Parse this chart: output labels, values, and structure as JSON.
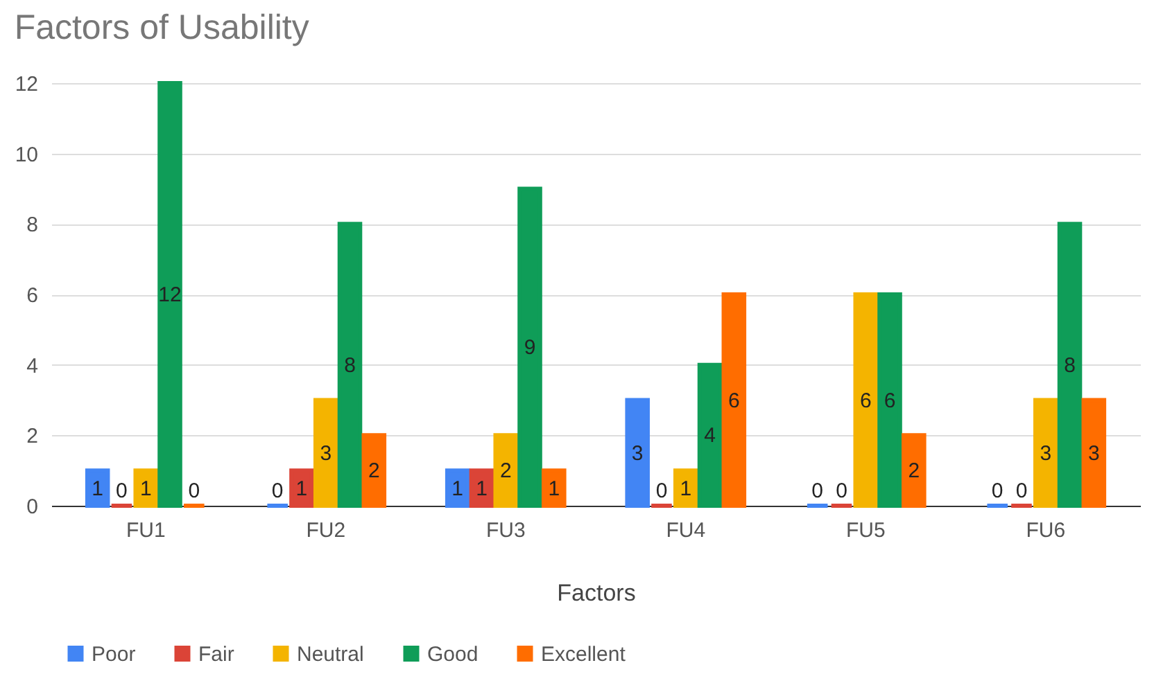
{
  "chart_data": {
    "type": "bar",
    "title": "Factors of Usability",
    "xlabel": "Factors",
    "categories": [
      "FU1",
      "FU2",
      "FU3",
      "FU4",
      "FU5",
      "FU6"
    ],
    "series": [
      {
        "name": "Poor",
        "color": "#4285f4",
        "values": [
          1,
          0,
          1,
          3,
          0,
          0
        ]
      },
      {
        "name": "Fair",
        "color": "#db4437",
        "values": [
          0,
          1,
          1,
          0,
          0,
          0
        ]
      },
      {
        "name": "Neutral",
        "color": "#f4b400",
        "values": [
          1,
          3,
          2,
          1,
          6,
          3
        ]
      },
      {
        "name": "Good",
        "color": "#0f9d58",
        "values": [
          12,
          8,
          9,
          4,
          6,
          8
        ]
      },
      {
        "name": "Excellent",
        "color": "#ff6d00",
        "values": [
          0,
          2,
          1,
          6,
          2,
          3
        ]
      }
    ],
    "ylim": [
      0,
      12
    ],
    "yticks": [
      0,
      2,
      4,
      6,
      8,
      10,
      12
    ],
    "grid": "y",
    "legend": "bottom",
    "data_labels": true
  }
}
